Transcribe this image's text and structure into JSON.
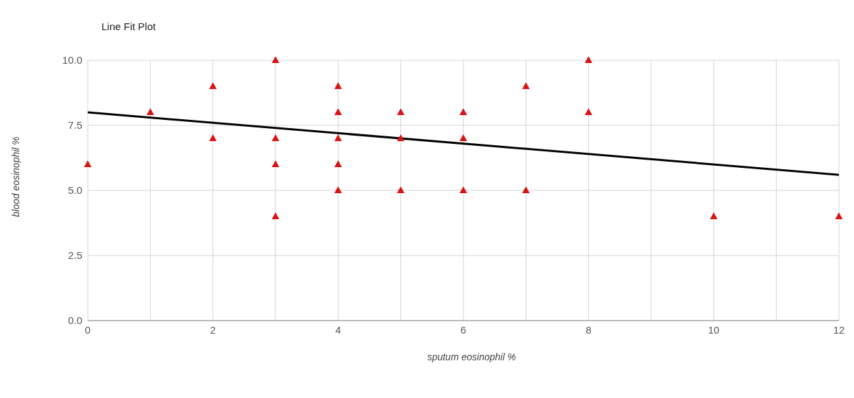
{
  "chart_data": {
    "type": "scatter",
    "title": "Line Fit Plot",
    "xlabel": "sputum eosinophil %",
    "ylabel": "blood eosinophil %",
    "xlim": [
      0,
      12
    ],
    "xticks": [
      0,
      {
        "value": 1,
        "label": null
      },
      2,
      {
        "value": 3,
        "label": null
      },
      4,
      {
        "value": 5,
        "label": null
      },
      6,
      {
        "value": 7,
        "label": null
      },
      8,
      {
        "value": 9,
        "label": null
      },
      10,
      {
        "value": 11,
        "label": null
      },
      12
    ],
    "ylim": [
      0,
      10
    ],
    "yticks": [
      {
        "value": 0,
        "label": "0.0"
      },
      {
        "value": 2.5,
        "label": "2.5"
      },
      {
        "value": 5,
        "label": "5.0"
      },
      {
        "value": 7.5,
        "label": "7.5"
      },
      {
        "value": 10,
        "label": "10.0"
      }
    ],
    "grid": true,
    "legend": false,
    "series": [
      {
        "color": "#d81414",
        "marker": "triangle",
        "x": [
          0,
          1,
          2,
          2,
          3,
          3,
          3,
          3,
          4,
          4,
          4,
          4,
          4,
          5,
          5,
          5,
          6,
          6,
          6,
          7,
          7,
          8,
          8,
          10,
          12
        ],
        "values": [
          6,
          8,
          9,
          7,
          10,
          7,
          6,
          4,
          9,
          8,
          7,
          6,
          5,
          8,
          7,
          5,
          8,
          7,
          5,
          9,
          5,
          10,
          8,
          4,
          4
        ]
      },
      {
        "type": "line",
        "color": "#000000",
        "marker": "none",
        "x": [
          0,
          12
        ],
        "values": [
          8,
          5.6
        ]
      }
    ]
  }
}
